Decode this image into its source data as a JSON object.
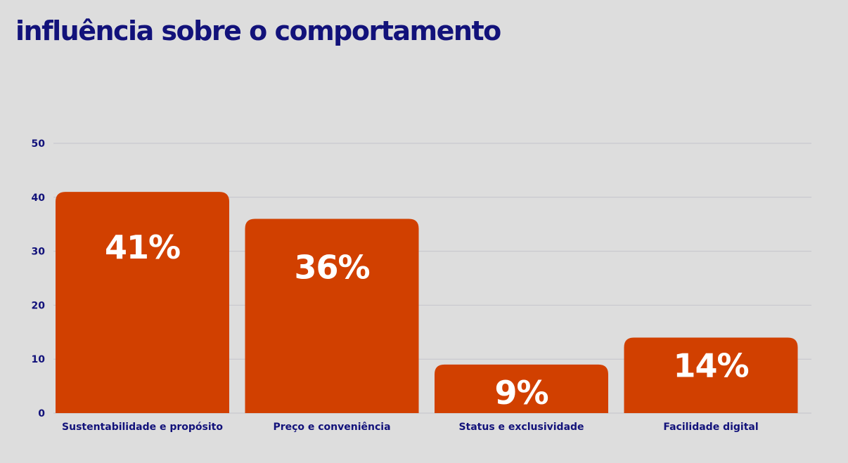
{
  "chart_data": {
    "type": "bar",
    "title": "influência sobre o comportamento",
    "categories": [
      "Sustentabilidade e propósito",
      "Preço e conveniência",
      "Status e exclusividade",
      "Facilidade digital"
    ],
    "values": [
      41,
      36,
      9,
      14
    ],
    "data_labels": [
      "41%",
      "36%",
      "9%",
      "14%"
    ],
    "yticks": [
      0,
      10,
      20,
      30,
      40,
      50
    ],
    "ylim": [
      0,
      50
    ],
    "grid": true,
    "colors": {
      "bar": "#d14000",
      "text": "#12127a",
      "grid": "#c4c4cc",
      "background": "#dddddd"
    }
  }
}
